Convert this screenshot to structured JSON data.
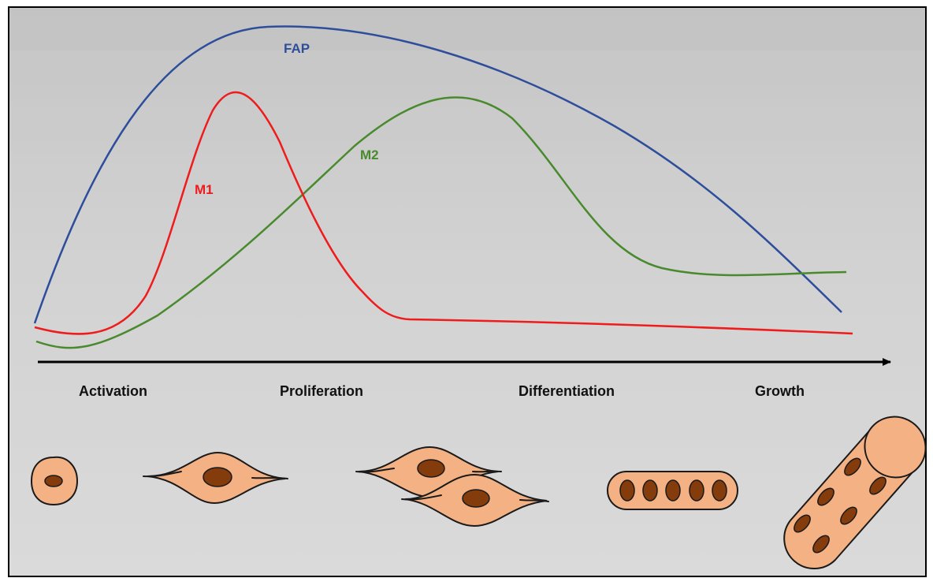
{
  "colors": {
    "fap": "#2e4e9c",
    "m1": "#ee1c1c",
    "m2": "#4a8a2e",
    "cell_fill": "#f4b183",
    "nucleus_fill": "#843c0c",
    "outline": "#1a1a1a"
  },
  "curves": {
    "fap": {
      "label": "FAP"
    },
    "m1": {
      "label": "M1"
    },
    "m2": {
      "label": "M2"
    }
  },
  "stages": [
    {
      "label": "Activation",
      "cell": "single-round-cell"
    },
    {
      "label": "Proliferation",
      "cell": "dividing-spindle-cells"
    },
    {
      "label": "Differentiation",
      "cell": "myotube"
    },
    {
      "label": "Growth",
      "cell": "muscle-fiber"
    }
  ]
}
